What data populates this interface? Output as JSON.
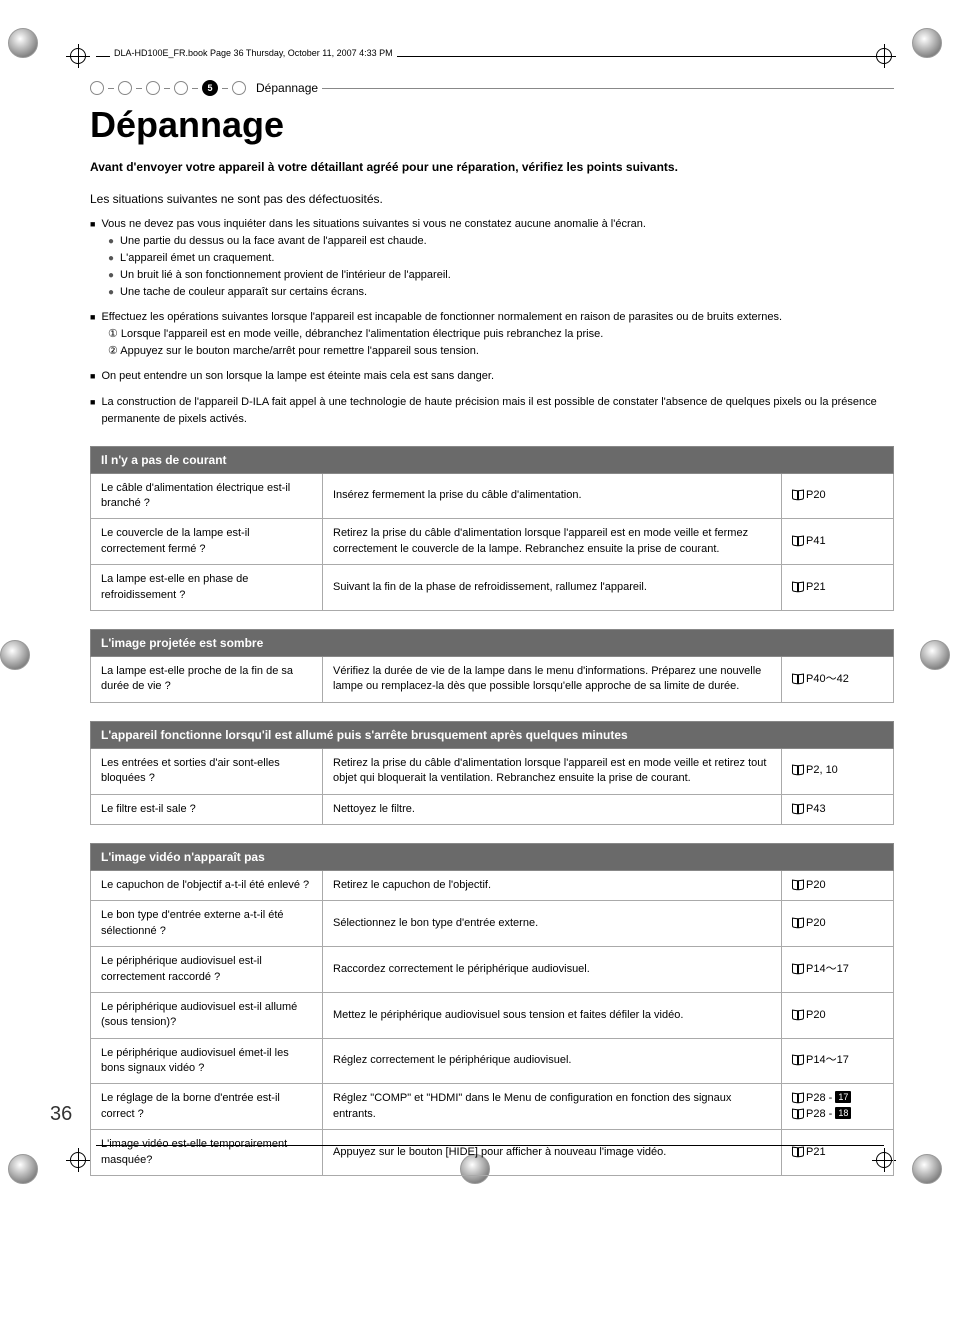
{
  "file_info": "DLA-HD100E_FR.book  Page 36  Thursday, October 11, 2007  4:33 PM",
  "section_number": "5",
  "section_label": "Dépannage",
  "title": "Dépannage",
  "intro_bold": "Avant d'envoyer votre appareil à votre détaillant agréé pour une réparation, vérifiez les points suivants.",
  "sub_intro": "Les situations suivantes ne sont pas des défectuosités.",
  "block1": {
    "lead": "Vous ne devez pas vous inquiéter dans les situations suivantes si vous ne constatez aucune anomalie à l'écran.",
    "items": [
      "Une partie du dessus ou la face avant de l'appareil est chaude.",
      "L'appareil émet un craquement.",
      "Un bruit lié à son fonctionnement provient de l'intérieur de l'appareil.",
      "Une tache de couleur apparaît sur certains écrans."
    ]
  },
  "block2": {
    "lead": "Effectuez les opérations suivantes lorsque l'appareil est incapable de fonctionner normalement en raison de parasites ou de bruits externes.",
    "items": [
      "① Lorsque l'appareil est en mode veille, débranchez l'alimentation électrique puis rebranchez la prise.",
      "② Appuyez sur le bouton marche/arrêt pour remettre l'appareil sous tension."
    ]
  },
  "block3": "On peut entendre un son lorsque la lampe est éteinte mais cela est sans danger.",
  "block4": "La construction de l'appareil D-ILA fait appel à une technologie de haute précision mais il est possible de constater l'absence de quelques pixels ou la présence permanente de pixels activés.",
  "tables": [
    {
      "header": "Il n'y a pas de courant",
      "rows": [
        {
          "q": "Le câble d'alimentation électrique est-il branché ?",
          "a": "Insérez fermement la prise du câble d'alimentation.",
          "ref": "P20"
        },
        {
          "q": "Le couvercle de la lampe est-il correctement fermé ?",
          "a": "Retirez la prise du câble d'alimentation lorsque l'appareil est en mode veille et fermez correctement le couvercle de la lampe. Rebranchez ensuite la prise de courant.",
          "ref": "P41"
        },
        {
          "q": "La lampe est-elle en phase de refroidissement ?",
          "a": "Suivant la fin de la phase de refroidissement, rallumez l'appareil.",
          "ref": "P21"
        }
      ]
    },
    {
      "header": "L'image projetée est sombre",
      "rows": [
        {
          "q": "La lampe est-elle proche de la fin de sa durée de vie ?",
          "a": "Vérifiez la durée de vie de la lampe dans le menu d'informations. Préparez une nouvelle lampe ou remplacez-la dès que possible lorsqu'elle approche de sa limite de durée.",
          "ref": "P40～42"
        }
      ]
    },
    {
      "header": "L'appareil fonctionne lorsqu'il est allumé puis s'arrête brusquement après quelques minutes",
      "rows": [
        {
          "q": "Les entrées et sorties d'air sont-elles bloquées ?",
          "a": "Retirez la prise du câble d'alimentation lorsque l'appareil est en mode veille et retirez tout objet qui bloquerait la ventilation. Rebranchez ensuite la prise de courant.",
          "ref": "P2, 10"
        },
        {
          "q": "Le filtre est-il sale ?",
          "a": "Nettoyez le filtre.",
          "ref": "P43"
        }
      ]
    },
    {
      "header": "L'image vidéo n'apparaît pas",
      "rows": [
        {
          "q": "Le capuchon de l'objectif a-t-il été enlevé ?",
          "a": "Retirez le capuchon de l'objectif.",
          "ref": "P20"
        },
        {
          "q": "Le bon type d'entrée externe a-t-il été sélectionné ?",
          "a": "Sélectionnez le bon type d'entrée externe.",
          "ref": "P20"
        },
        {
          "q": "Le périphérique audiovisuel est-il correctement raccordé ?",
          "a": "Raccordez correctement le périphérique audiovisuel.",
          "ref": "P14～17"
        },
        {
          "q": "Le périphérique audiovisuel est-il allumé (sous tension)?",
          "a": "Mettez le périphérique audiovisuel sous tension et faites défiler la vidéo.",
          "ref": "P20"
        },
        {
          "q": "Le périphérique audiovisuel émet-il les bons signaux vidéo ?",
          "a": "Réglez correctement le périphérique audiovisuel.",
          "ref": "P14～17"
        },
        {
          "q": "Le réglage de la borne d'entrée est-il correct ?",
          "a": "Réglez \"COMP\" et \"HDMI\" dans le Menu de configuration en fonction des signaux entrants.",
          "ref_special": true,
          "ref1": "P28 -",
          "box1": "17",
          "ref2": "P28 -",
          "box2": "18"
        },
        {
          "q": "L'image vidéo est-elle temporairement masquée?",
          "a": "Appuyez sur le bouton [HIDE] pour afficher à nouveau l'image vidéo.",
          "ref": "P21"
        }
      ]
    }
  ],
  "page_number": "36",
  "colors": {
    "header_bg": "#6a6a6a",
    "border": "#aaaaaa",
    "text": "#000000"
  }
}
